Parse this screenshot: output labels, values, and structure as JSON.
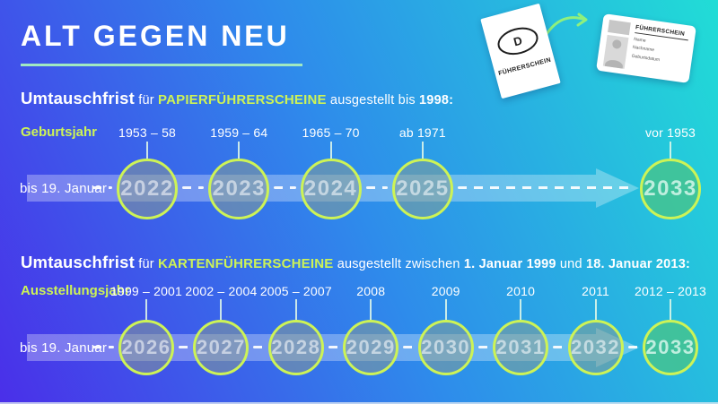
{
  "header": {
    "title": "ALT GEGEN NEU",
    "paper_license": {
      "country_letter": "D",
      "label": "FÜHRERSCHEIN"
    },
    "card_license": {
      "title": "FÜHRERSCHEIN",
      "lines": [
        "Name",
        "Nachname",
        "Geburtsdatum"
      ]
    }
  },
  "colors": {
    "lime_accent": "#cdf356",
    "underline_mint": "#a0e9c1",
    "band_white": "rgba(255,255,255,0.30)",
    "final_circle_green": "rgba(70,195,142,0.82)",
    "background_bottom_left": "#4a2fe9",
    "background_top_right": "#21ddd6"
  },
  "sections": [
    {
      "heading": [
        {
          "t": "Umtauschfrist",
          "s": "big"
        },
        {
          "t": " für ",
          "s": "reg"
        },
        {
          "t": "PAPIERFÜHRERSCHEINE",
          "s": "lime"
        },
        {
          "t": " ausgestellt bis ",
          "s": "reg"
        },
        {
          "t": "1998:",
          "s": "bold"
        }
      ],
      "axis_label": "Geburtsjahr",
      "row_label": "bis 19. Januar",
      "entries": [
        {
          "label": "1953 – 58",
          "year": "2022"
        },
        {
          "label": "1959 – 64",
          "year": "2023"
        },
        {
          "label": "1965 – 70",
          "year": "2024"
        },
        {
          "label": "ab 1971",
          "year": "2025"
        },
        {
          "label": "vor 1953",
          "year": "2033",
          "highlight": true
        }
      ],
      "gap_before_last": true
    },
    {
      "heading": [
        {
          "t": "Umtauschfrist",
          "s": "big"
        },
        {
          "t": " für ",
          "s": "reg"
        },
        {
          "t": "KARTENFÜHRERSCHEINE",
          "s": "lime"
        },
        {
          "t": " ausgestellt zwischen ",
          "s": "reg"
        },
        {
          "t": "1. Januar 1999",
          "s": "bold"
        },
        {
          "t": " und ",
          "s": "reg"
        },
        {
          "t": "18. Januar 2013:",
          "s": "bold"
        }
      ],
      "axis_label": "Ausstellungsjahr",
      "row_label": "bis 19. Januar",
      "entries": [
        {
          "label": "1999 – 2001",
          "year": "2026"
        },
        {
          "label": "2002 – 2004",
          "year": "2027"
        },
        {
          "label": "2005 – 2007",
          "year": "2028"
        },
        {
          "label": "2008",
          "year": "2029"
        },
        {
          "label": "2009",
          "year": "2030"
        },
        {
          "label": "2010",
          "year": "2031"
        },
        {
          "label": "2011",
          "year": "2032"
        },
        {
          "label": "2012 – 2013",
          "year": "2033",
          "highlight": true
        }
      ],
      "gap_before_last": false
    }
  ]
}
